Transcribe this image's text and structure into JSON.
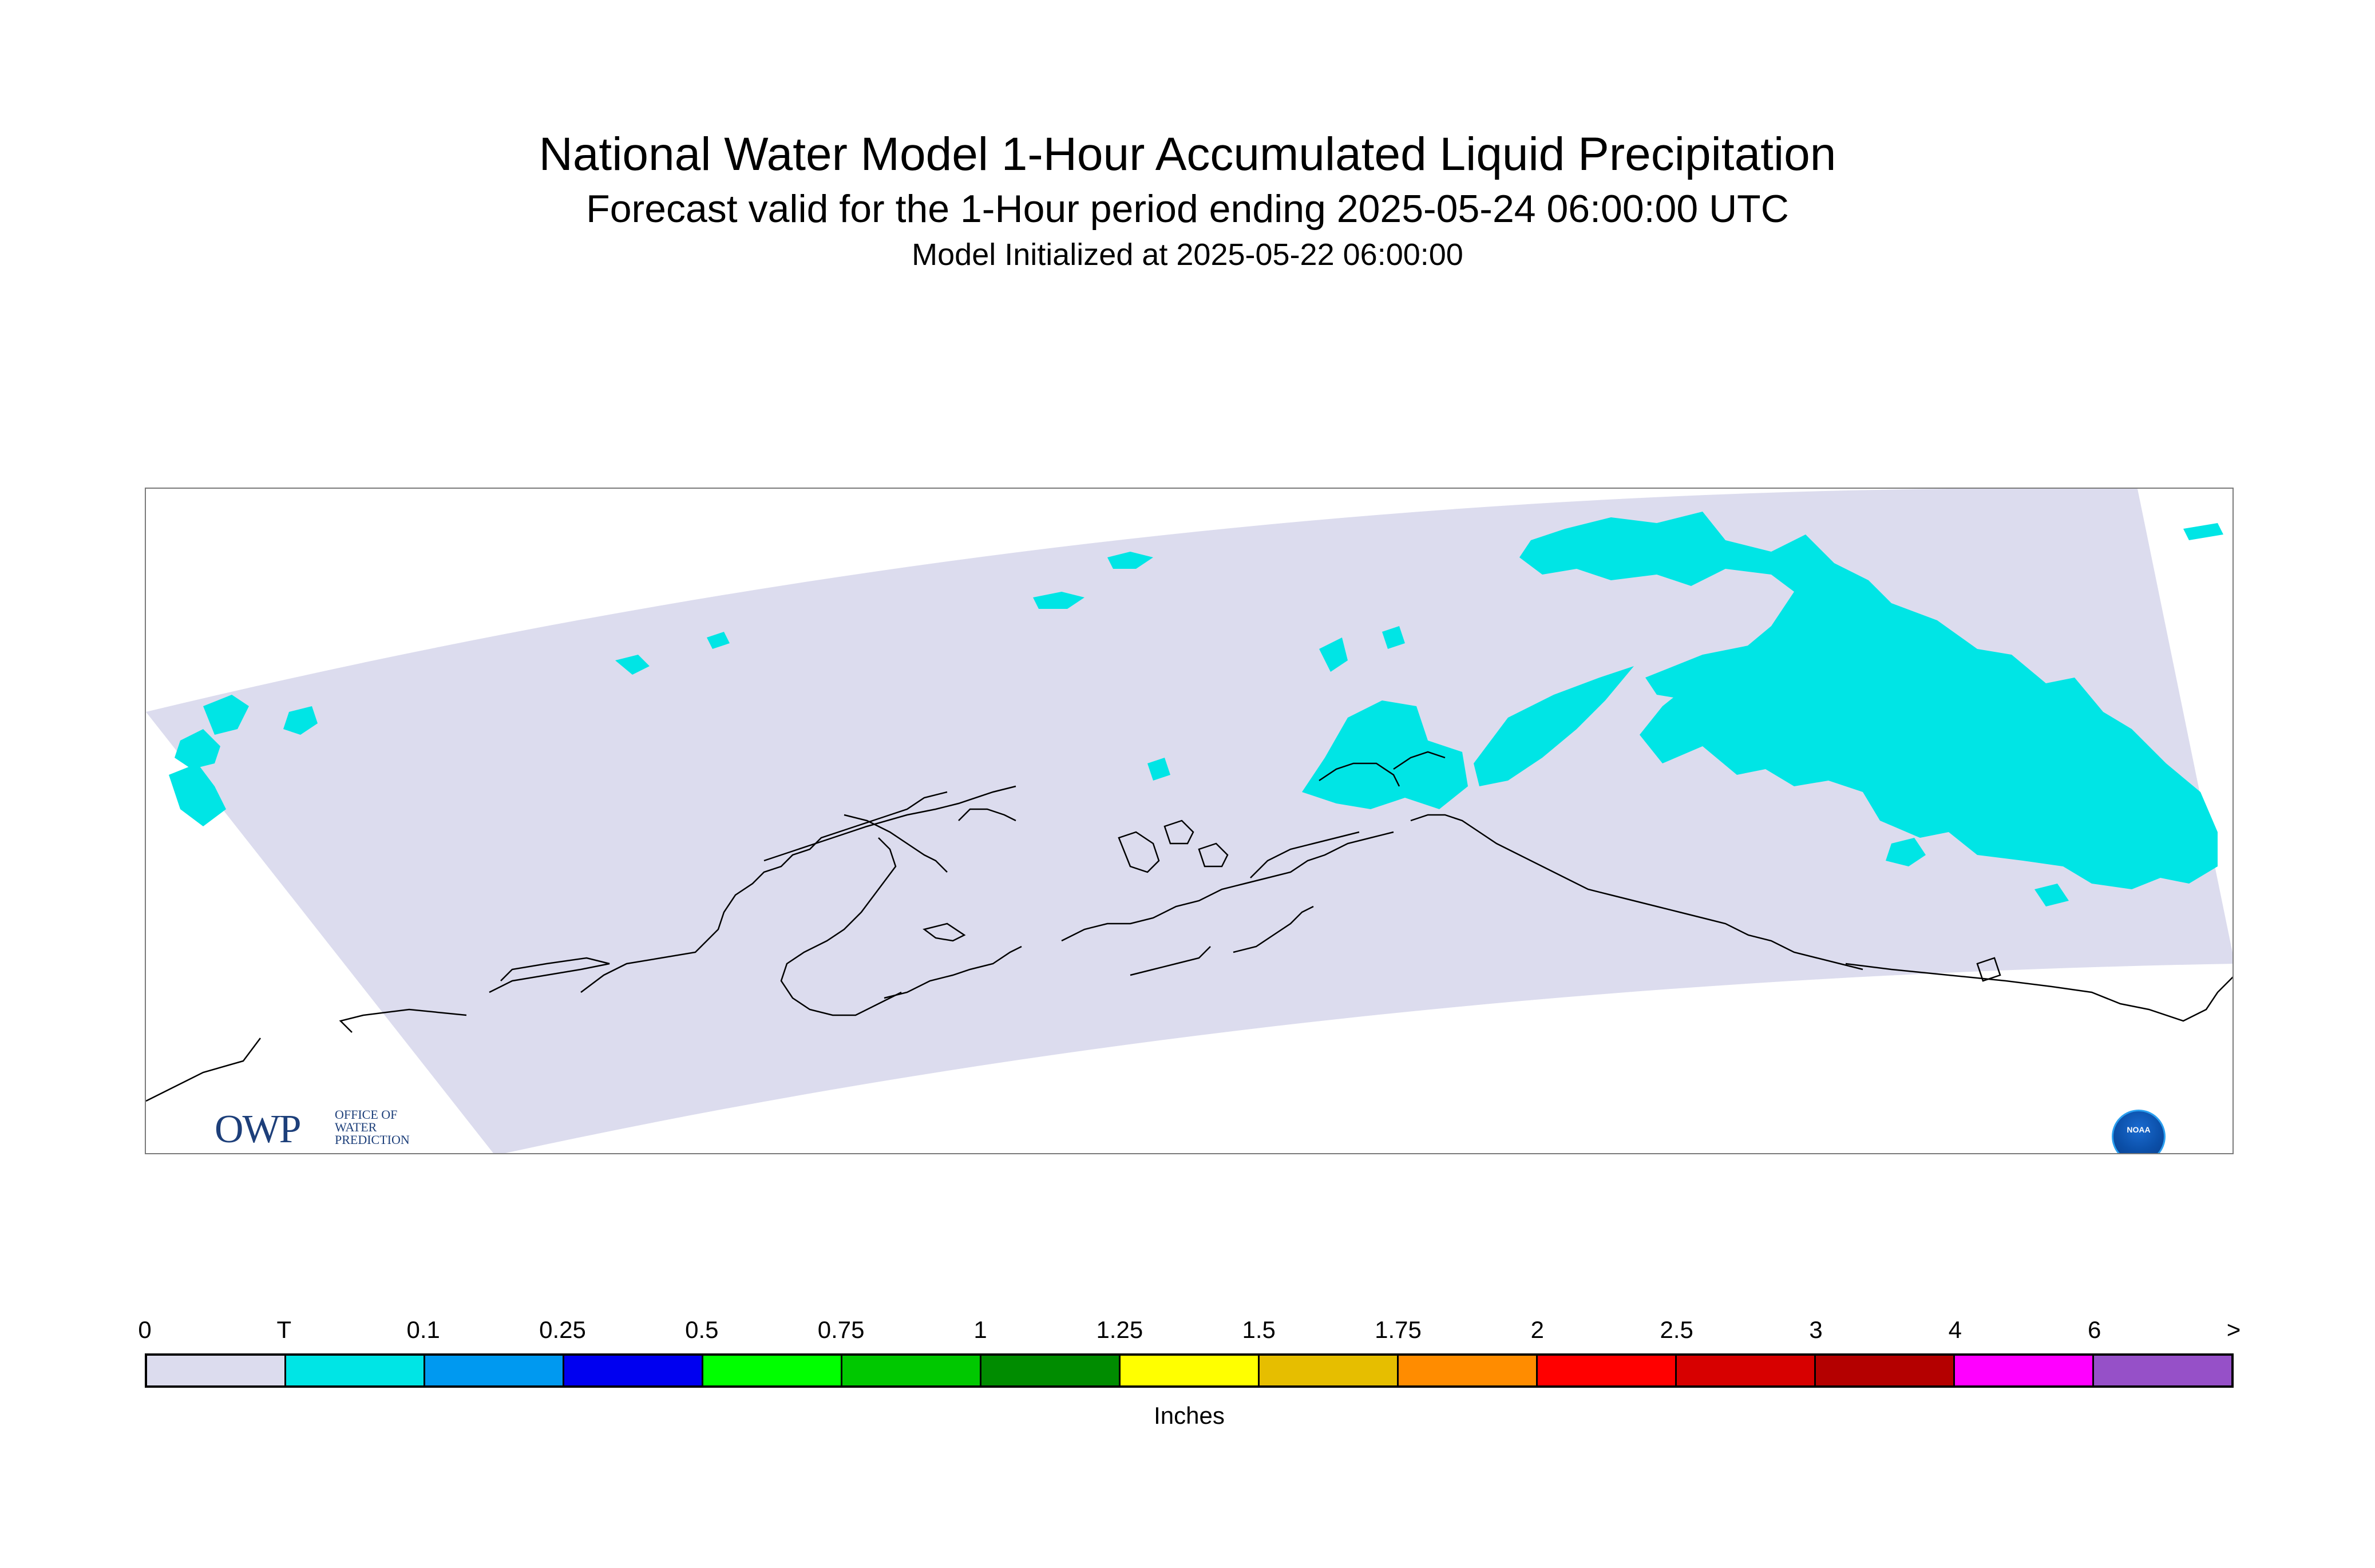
{
  "title": "National Water Model 1-Hour Accumulated Liquid Precipitation",
  "subtitle": "Forecast valid for the 1-Hour period ending 2025-05-24 06:00:00 UTC",
  "init_line": "Model Initialized at 2025-05-22 06:00:00",
  "map": {
    "domain_fill": "#dcdcee",
    "precip_color": "#00e5e5",
    "coast_color": "#000000"
  },
  "logos": {
    "owp_text": "OWP",
    "owp_sub": [
      "OFFICE OF",
      "WATER",
      "PREDICTION"
    ],
    "noaa_text": "NOAA"
  },
  "legend": {
    "labels": [
      "0",
      "T",
      "0.1",
      "0.25",
      "0.5",
      "0.75",
      "1",
      "1.25",
      "1.5",
      "1.75",
      "2",
      "2.5",
      "3",
      "4",
      "6",
      ">"
    ],
    "colors": [
      "#dcdcee",
      "#00e5e5",
      "#0099f0",
      "#0000f0",
      "#00ff00",
      "#00c800",
      "#008c00",
      "#ffff00",
      "#e6be00",
      "#ff8c00",
      "#ff0000",
      "#d70000",
      "#b40000",
      "#ff00ff",
      "#9650c8"
    ],
    "units": "Inches"
  }
}
